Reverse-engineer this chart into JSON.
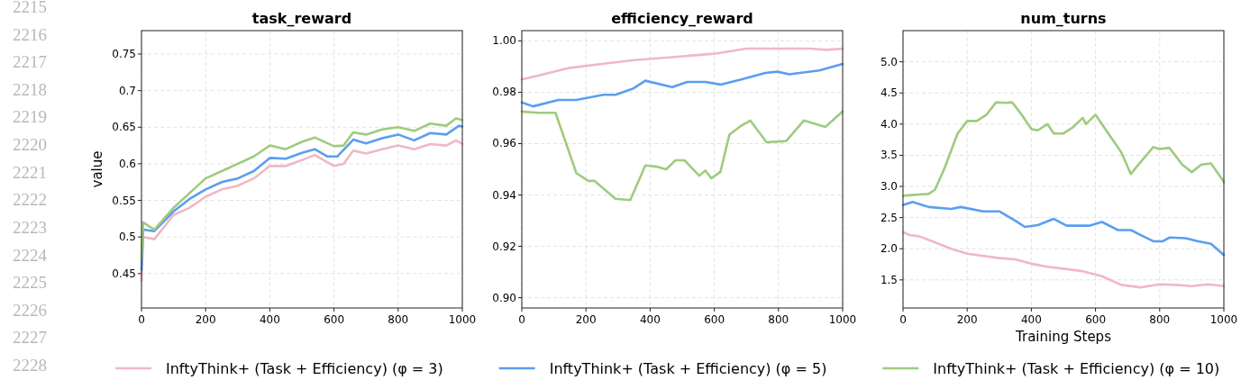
{
  "chart_data": [
    {
      "type": "line",
      "title": "task_reward",
      "ylabel": "value",
      "xlim": [
        0,
        1000
      ],
      "xticks": [
        0,
        200,
        400,
        600,
        800,
        1000
      ],
      "ylim": [
        0.403,
        0.782
      ],
      "yticks": [
        0.45,
        0.5,
        0.55,
        0.6,
        0.65,
        0.7,
        0.75
      ],
      "grid": true,
      "legend": "bottom",
      "annotations": [
        "2215",
        "2216",
        "2217",
        "2218",
        "2219",
        "2220",
        "2221",
        "2222",
        "2223",
        "2224",
        "2225",
        "2226",
        "2227",
        "2228"
      ],
      "series": [
        {
          "name": "InftyThink+ (Task + Efficiency) (φ = 3)",
          "color": "#f0b8c4",
          "x": [
            0,
            5,
            40,
            100,
            150,
            200,
            250,
            300,
            350,
            400,
            450,
            500,
            540,
            600,
            630,
            660,
            700,
            750,
            800,
            850,
            900,
            950,
            980,
            1000
          ],
          "values": [
            0.44,
            0.5,
            0.497,
            0.53,
            0.54,
            0.555,
            0.565,
            0.57,
            0.58,
            0.597,
            0.597,
            0.605,
            0.612,
            0.597,
            0.6,
            0.618,
            0.614,
            0.62,
            0.625,
            0.62,
            0.627,
            0.625,
            0.632,
            0.627
          ]
        },
        {
          "name": "InftyThink+ (Task + Efficiency) (φ = 5)",
          "color": "#5a9ef0",
          "x": [
            0,
            5,
            40,
            100,
            150,
            200,
            250,
            300,
            350,
            400,
            450,
            500,
            540,
            580,
            610,
            660,
            700,
            750,
            800,
            850,
            900,
            950,
            990,
            1000
          ],
          "values": [
            0.455,
            0.51,
            0.508,
            0.535,
            0.552,
            0.565,
            0.575,
            0.58,
            0.59,
            0.608,
            0.607,
            0.615,
            0.62,
            0.61,
            0.61,
            0.633,
            0.628,
            0.635,
            0.64,
            0.632,
            0.642,
            0.64,
            0.652,
            0.651
          ]
        },
        {
          "name": "InftyThink+ (Task + Efficiency) (φ = 10)",
          "color": "#9fcb7e",
          "x": [
            0,
            5,
            40,
            100,
            150,
            200,
            250,
            300,
            350,
            400,
            450,
            500,
            540,
            600,
            630,
            660,
            700,
            750,
            800,
            850,
            900,
            950,
            980,
            1000
          ],
          "values": [
            0.47,
            0.52,
            0.51,
            0.54,
            0.56,
            0.58,
            0.59,
            0.6,
            0.61,
            0.625,
            0.62,
            0.63,
            0.636,
            0.624,
            0.625,
            0.643,
            0.64,
            0.647,
            0.65,
            0.645,
            0.655,
            0.652,
            0.662,
            0.66
          ]
        }
      ]
    },
    {
      "type": "line",
      "title": "efficiency_reward",
      "xlim": [
        0,
        1000
      ],
      "xticks": [
        0,
        200,
        400,
        600,
        800,
        1000
      ],
      "ylim": [
        0.896,
        1.004
      ],
      "yticks": [
        {
          "value": 0.9,
          "label": "0.90"
        },
        {
          "value": 0.92,
          "label": "0.92"
        },
        {
          "value": 0.94,
          "label": "0.94"
        },
        {
          "value": 0.96,
          "label": "0.96"
        },
        {
          "value": 0.98,
          "label": "0.98"
        },
        {
          "value": 1.0,
          "label": "1.00"
        }
      ],
      "grid": true,
      "series": [
        {
          "color": "#f0b8c4",
          "x": [
            0,
            50,
            150,
            250,
            350,
            450,
            600,
            700,
            800,
            900,
            950,
            1000
          ],
          "values": [
            0.985,
            0.9865,
            0.9895,
            0.991,
            0.9925,
            0.9935,
            0.995,
            0.997,
            0.997,
            0.997,
            0.9965,
            0.997
          ]
        },
        {
          "color": "#5a9ef0",
          "x": [
            0,
            35,
            114,
            170,
            254,
            292,
            348,
            385,
            469,
            516,
            572,
            619,
            684,
            759,
            796,
            834,
            927,
            1000
          ],
          "values": [
            0.976,
            0.9745,
            0.977,
            0.977,
            0.979,
            0.979,
            0.9815,
            0.9845,
            0.982,
            0.984,
            0.984,
            0.983,
            0.985,
            0.9875,
            0.988,
            0.987,
            0.9885,
            0.991
          ]
        },
        {
          "color": "#9fcb7e",
          "x": [
            0,
            50,
            105,
            170,
            207,
            226,
            292,
            338,
            385,
            422,
            450,
            479,
            507,
            553,
            572,
            591,
            619,
            647,
            684,
            712,
            763,
            824,
            879,
            946,
            1000
          ],
          "values": [
            0.9725,
            0.972,
            0.972,
            0.9485,
            0.9455,
            0.9455,
            0.9385,
            0.938,
            0.9515,
            0.951,
            0.95,
            0.9535,
            0.9535,
            0.9475,
            0.9495,
            0.9465,
            0.949,
            0.9635,
            0.967,
            0.969,
            0.9605,
            0.961,
            0.969,
            0.9665,
            0.9725
          ]
        }
      ]
    },
    {
      "type": "line",
      "title": "num_turns",
      "xlabel": "Training Steps",
      "xlim": [
        0,
        1000
      ],
      "xticks": [
        0,
        200,
        400,
        600,
        800,
        1000
      ],
      "ylim": [
        1.05,
        5.5
      ],
      "yticks": [
        {
          "value": 1.5,
          "label": "1.5"
        },
        {
          "value": 2,
          "label": "2.0"
        },
        {
          "value": 2.5,
          "label": "2.5"
        },
        {
          "value": 3,
          "label": "3.0"
        },
        {
          "value": 3.5,
          "label": "3.5"
        },
        {
          "value": 4,
          "label": "4.0"
        },
        {
          "value": 4.5,
          "label": "4.5"
        },
        {
          "value": 5,
          "label": "5.0"
        }
      ],
      "grid": true,
      "series": [
        {
          "color": "#f0b8c4",
          "x": [
            0,
            20,
            50,
            100,
            150,
            200,
            300,
            350,
            400,
            450,
            500,
            560,
            620,
            680,
            740,
            800,
            850,
            900,
            950,
            1000
          ],
          "values": [
            2.27,
            2.22,
            2.2,
            2.1,
            2.0,
            1.92,
            1.85,
            1.83,
            1.76,
            1.71,
            1.68,
            1.64,
            1.56,
            1.42,
            1.38,
            1.43,
            1.42,
            1.4,
            1.43,
            1.4
          ]
        },
        {
          "color": "#5a9ef0",
          "x": [
            0,
            30,
            80,
            150,
            180,
            250,
            300,
            350,
            380,
            420,
            470,
            510,
            580,
            620,
            670,
            710,
            780,
            810,
            830,
            880,
            920,
            960,
            1000
          ],
          "values": [
            2.7,
            2.75,
            2.67,
            2.64,
            2.67,
            2.6,
            2.6,
            2.45,
            2.35,
            2.38,
            2.48,
            2.37,
            2.37,
            2.43,
            2.3,
            2.3,
            2.12,
            2.12,
            2.18,
            2.17,
            2.12,
            2.08,
            1.9
          ]
        },
        {
          "color": "#9fcb7e",
          "x": [
            0,
            50,
            80,
            100,
            130,
            170,
            200,
            230,
            260,
            290,
            320,
            340,
            370,
            400,
            420,
            450,
            470,
            500,
            530,
            560,
            570,
            600,
            640,
            680,
            710,
            750,
            780,
            800,
            830,
            870,
            900,
            930,
            960,
            990,
            1000
          ],
          "values": [
            2.85,
            2.87,
            2.88,
            2.95,
            3.3,
            3.85,
            4.05,
            4.05,
            4.15,
            4.35,
            4.34,
            4.35,
            4.15,
            3.92,
            3.9,
            4.0,
            3.85,
            3.85,
            3.95,
            4.1,
            4.0,
            4.15,
            3.85,
            3.55,
            3.2,
            3.45,
            3.63,
            3.6,
            3.62,
            3.35,
            3.23,
            3.35,
            3.37,
            3.15,
            3.07
          ]
        }
      ]
    }
  ]
}
